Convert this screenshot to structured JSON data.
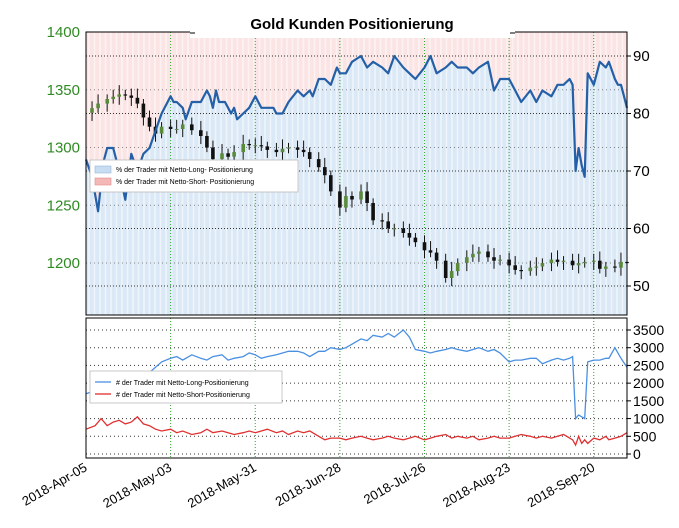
{
  "chart_data": [
    {
      "type": "line",
      "title": "Gold Kunden Positionierung",
      "left_axis": {
        "ticks": [
          "1400",
          "1350",
          "1300",
          "1250",
          "1200"
        ],
        "range": [
          1155,
          1400
        ],
        "color": "#2e8b22"
      },
      "right_axis": {
        "ticks": [
          "90",
          "80",
          "70",
          "60",
          "50"
        ],
        "range": [
          45,
          92
        ]
      },
      "x_ticks": [
        "2018-Apr-05",
        "2018-May-03",
        "2018-May-31",
        "2018-Jun-28",
        "2018-Jul-26",
        "2018-Aug-23",
        "2018-Sep-20"
      ],
      "x_tick_days": [
        0,
        28,
        56,
        84,
        112,
        140,
        168
      ],
      "x_range_days": [
        0,
        179
      ],
      "legend": [
        {
          "label": "% der Trader  mit Netto-Long- Positionierung",
          "color": "#c8dcf2"
        },
        {
          "label": "% der Trader  mit Netto-Short- Positionierung",
          "color": "#f5b8b8"
        }
      ],
      "grid": true,
      "reference_level": 175,
      "price_series": {
        "x": [
          0,
          2,
          4,
          7,
          9,
          11,
          13,
          15,
          17,
          19,
          21,
          23,
          25,
          28,
          30,
          32,
          35,
          38,
          40,
          42,
          45,
          47,
          49,
          52,
          54,
          56,
          58,
          60,
          63,
          65,
          67,
          70,
          72,
          74,
          77,
          79,
          81,
          84,
          86,
          88,
          91,
          93,
          95,
          98,
          100,
          102,
          105,
          107,
          109,
          112,
          114,
          116,
          119,
          121,
          123,
          126,
          128,
          130,
          133,
          135,
          137,
          140,
          142,
          144,
          147,
          149,
          151,
          154,
          156,
          158,
          161,
          163,
          165,
          168,
          170,
          172,
          175,
          177,
          179
        ],
        "y": [
          1330,
          1334,
          1338,
          1342,
          1344,
          1346,
          1345,
          1343,
          1338,
          1326,
          1318,
          1312,
          1318,
          1316,
          1316,
          1320,
          1315,
          1310,
          1300,
          1290,
          1295,
          1292,
          1296,
          1303,
          1302,
          1302,
          1301,
          1298,
          1296,
          1299,
          1300,
          1298,
          1296,
          1290,
          1283,
          1276,
          1262,
          1248,
          1258,
          1255,
          1262,
          1252,
          1237,
          1236,
          1230,
          1230,
          1226,
          1222,
          1218,
          1211,
          1209,
          1202,
          1187,
          1193,
          1200,
          1205,
          1208,
          1210,
          1205,
          1202,
          1203,
          1198,
          1194,
          1193,
          1196,
          1197,
          1200,
          1203,
          1201,
          1202,
          1198,
          1200,
          1201,
          1202,
          1195,
          1197,
          1196,
          1201,
          1200
        ]
      },
      "pct_long_series": {
        "x": [
          0,
          2,
          4,
          5,
          6,
          7,
          9,
          11,
          13,
          15,
          17,
          19,
          21,
          23,
          25,
          27,
          28,
          29,
          30,
          32,
          33,
          35,
          37,
          38,
          40,
          41,
          42,
          43,
          44,
          45,
          46,
          47,
          48,
          49,
          50,
          52,
          54,
          56,
          58,
          60,
          62,
          63,
          65,
          67,
          70,
          72,
          74,
          75,
          77,
          79,
          81,
          83,
          84,
          86,
          88,
          91,
          93,
          95,
          98,
          100,
          102,
          105,
          107,
          109,
          112,
          114,
          116,
          119,
          121,
          123,
          126,
          128,
          130,
          133,
          135,
          137,
          140,
          142,
          144,
          147,
          149,
          151,
          154,
          156,
          158,
          160,
          161,
          162,
          163,
          164,
          165,
          166,
          168,
          170,
          172,
          173,
          175,
          176,
          177,
          179
        ],
        "y": [
          72,
          69,
          63,
          68,
          72,
          74,
          74,
          70,
          65,
          73,
          70,
          73,
          74,
          77,
          80,
          82,
          83,
          82,
          82,
          81,
          79,
          82,
          82,
          82,
          84,
          83,
          81,
          84,
          82,
          82,
          82,
          81,
          80,
          81,
          79,
          80,
          81,
          83,
          81,
          81,
          81,
          80,
          80,
          82,
          84,
          83,
          84,
          83,
          86,
          86,
          85,
          88,
          87,
          87,
          89,
          90,
          88,
          89,
          88,
          87,
          90,
          88,
          87,
          86,
          88,
          90,
          87,
          88,
          89,
          88,
          88,
          87,
          88,
          89,
          84,
          86,
          86,
          84,
          82,
          84,
          82,
          84,
          83,
          85,
          85,
          86,
          85,
          70,
          74,
          71,
          69,
          87,
          85,
          89,
          88,
          89,
          86,
          85,
          85,
          81
        ]
      },
      "long_trader_series": {
        "x": [
          0,
          7,
          14,
          21,
          25,
          28,
          30,
          32,
          35,
          38,
          40,
          42,
          45,
          47,
          49,
          52,
          54,
          56,
          58,
          60,
          63,
          65,
          67,
          70,
          72,
          74,
          77,
          79,
          81,
          84,
          86,
          88,
          91,
          93,
          95,
          98,
          100,
          102,
          105,
          107,
          109,
          112,
          114,
          116,
          119,
          121,
          123,
          126,
          128,
          130,
          133,
          135,
          137,
          140,
          142,
          144,
          147,
          149,
          151,
          154,
          156,
          158,
          160,
          161,
          162,
          163,
          164,
          165,
          166,
          168,
          170,
          172,
          173,
          175,
          177,
          179
        ],
        "y": [
          1700,
          1900,
          2200,
          2300,
          2600,
          2700,
          2750,
          2650,
          2800,
          2700,
          2650,
          2750,
          2800,
          2650,
          2700,
          2750,
          2850,
          2800,
          2700,
          2750,
          2800,
          2850,
          2900,
          2900,
          2850,
          2750,
          2900,
          2900,
          3000,
          2950,
          3000,
          3100,
          3250,
          3200,
          3350,
          3300,
          3400,
          3300,
          3500,
          3300,
          2950,
          2900,
          2850,
          2900,
          2950,
          3000,
          2950,
          2900,
          2950,
          3000,
          2900,
          2950,
          2850,
          2600,
          2650,
          2650,
          2700,
          2700,
          2550,
          2650,
          2700,
          2650,
          2700,
          2750,
          1000,
          1100,
          1050,
          1000,
          2600,
          2650,
          2650,
          2700,
          2700,
          3000,
          2700,
          2450
        ]
      },
      "short_trader_series": {
        "x": [
          0,
          3,
          5,
          7,
          9,
          11,
          13,
          15,
          17,
          19,
          21,
          23,
          25,
          28,
          30,
          32,
          35,
          38,
          40,
          42,
          45,
          47,
          49,
          52,
          54,
          56,
          58,
          60,
          63,
          65,
          67,
          70,
          72,
          74,
          77,
          79,
          81,
          84,
          86,
          88,
          91,
          93,
          95,
          98,
          100,
          102,
          105,
          107,
          109,
          112,
          114,
          116,
          119,
          121,
          123,
          126,
          128,
          130,
          133,
          135,
          137,
          140,
          142,
          144,
          147,
          149,
          151,
          154,
          156,
          158,
          160,
          161,
          162,
          163,
          164,
          165,
          166,
          168,
          170,
          172,
          173,
          175,
          177,
          179
        ],
        "y": [
          700,
          800,
          1000,
          800,
          900,
          950,
          850,
          900,
          1050,
          850,
          800,
          700,
          650,
          700,
          600,
          650,
          550,
          600,
          700,
          600,
          650,
          600,
          550,
          600,
          650,
          600,
          650,
          700,
          600,
          650,
          550,
          650,
          600,
          650,
          500,
          400,
          450,
          450,
          400,
          450,
          500,
          450,
          400,
          450,
          500,
          450,
          400,
          450,
          500,
          400,
          450,
          500,
          550,
          450,
          500,
          450,
          500,
          400,
          450,
          500,
          450,
          450,
          500,
          550,
          500,
          450,
          500,
          450,
          500,
          550,
          450,
          400,
          250,
          500,
          300,
          400,
          300,
          450,
          400,
          500,
          400,
          450,
          500,
          600
        ]
      },
      "bottom_axis": {
        "ticks": [
          "3500",
          "3000",
          "2500",
          "2000",
          "1500",
          "1000",
          "500",
          "0"
        ],
        "range": [
          0,
          3800
        ]
      },
      "bottom_legend": [
        {
          "label": "# der Trader  mit Netto-Long-Positionierung",
          "color": "#4a90e2"
        },
        {
          "label": "# der Trader  mit Netto-Short-Positionierung",
          "color": "#e03030"
        }
      ]
    }
  ],
  "colors": {
    "pct_line": "#2460a7",
    "long_fill": "#dbe8f6",
    "short_fill": "#fbe4e4",
    "grid_dot": "#333333",
    "green_grid": "#2ea82e",
    "candle": "#111111",
    "long_line": "#4a90e2",
    "short_line": "#e03030"
  }
}
